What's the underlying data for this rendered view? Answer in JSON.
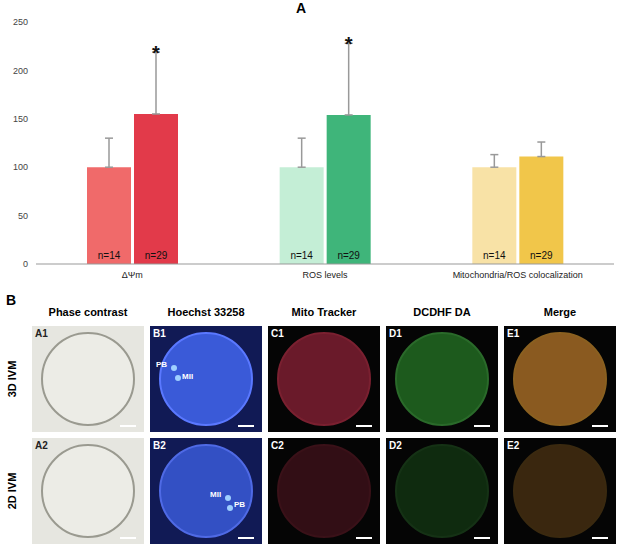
{
  "chart_data": {
    "type": "bar",
    "panel_label": "A",
    "categories": [
      "ΔΨm",
      "ROS levels",
      "Mitochondria/ROS colocalization"
    ],
    "series": [
      {
        "values": [
          100,
          100,
          100
        ],
        "errors": [
          30,
          30,
          13
        ],
        "colors": [
          "#f06a6a",
          "#c4eed6",
          "#f8e2a6"
        ],
        "n_labels": [
          "n=14",
          "n=14",
          "n=14"
        ]
      },
      {
        "values": [
          155,
          154,
          111
        ],
        "errors": [
          64,
          74,
          15
        ],
        "colors": [
          "#e23a4a",
          "#3fb57a",
          "#f1c64a"
        ],
        "n_labels": [
          "n=29",
          "n=29",
          "n=29"
        ]
      }
    ],
    "ylim": [
      0,
      250
    ],
    "yticks": [
      0,
      50,
      100,
      150,
      200,
      250
    ],
    "grid": false,
    "annotations": [
      {
        "text": "*",
        "category": "ΔΨm",
        "series": 1
      },
      {
        "text": "*",
        "category": "ROS levels",
        "series": 1
      }
    ]
  },
  "image_panel": {
    "panel_label": "B",
    "columns": [
      "Phase contrast",
      "Hoechst 33258",
      "Mito Tracker",
      "DCDHF DA",
      "Merge"
    ],
    "rows": [
      {
        "label": "3D IVM",
        "panels": [
          "A1",
          "B1",
          "C1",
          "D1",
          "E1"
        ],
        "marks": [
          "PB",
          "MII"
        ]
      },
      {
        "label": "2D IVM",
        "panels": [
          "A2",
          "B2",
          "C2",
          "D2",
          "E2"
        ],
        "marks": [
          "MII",
          "PB"
        ]
      }
    ]
  }
}
